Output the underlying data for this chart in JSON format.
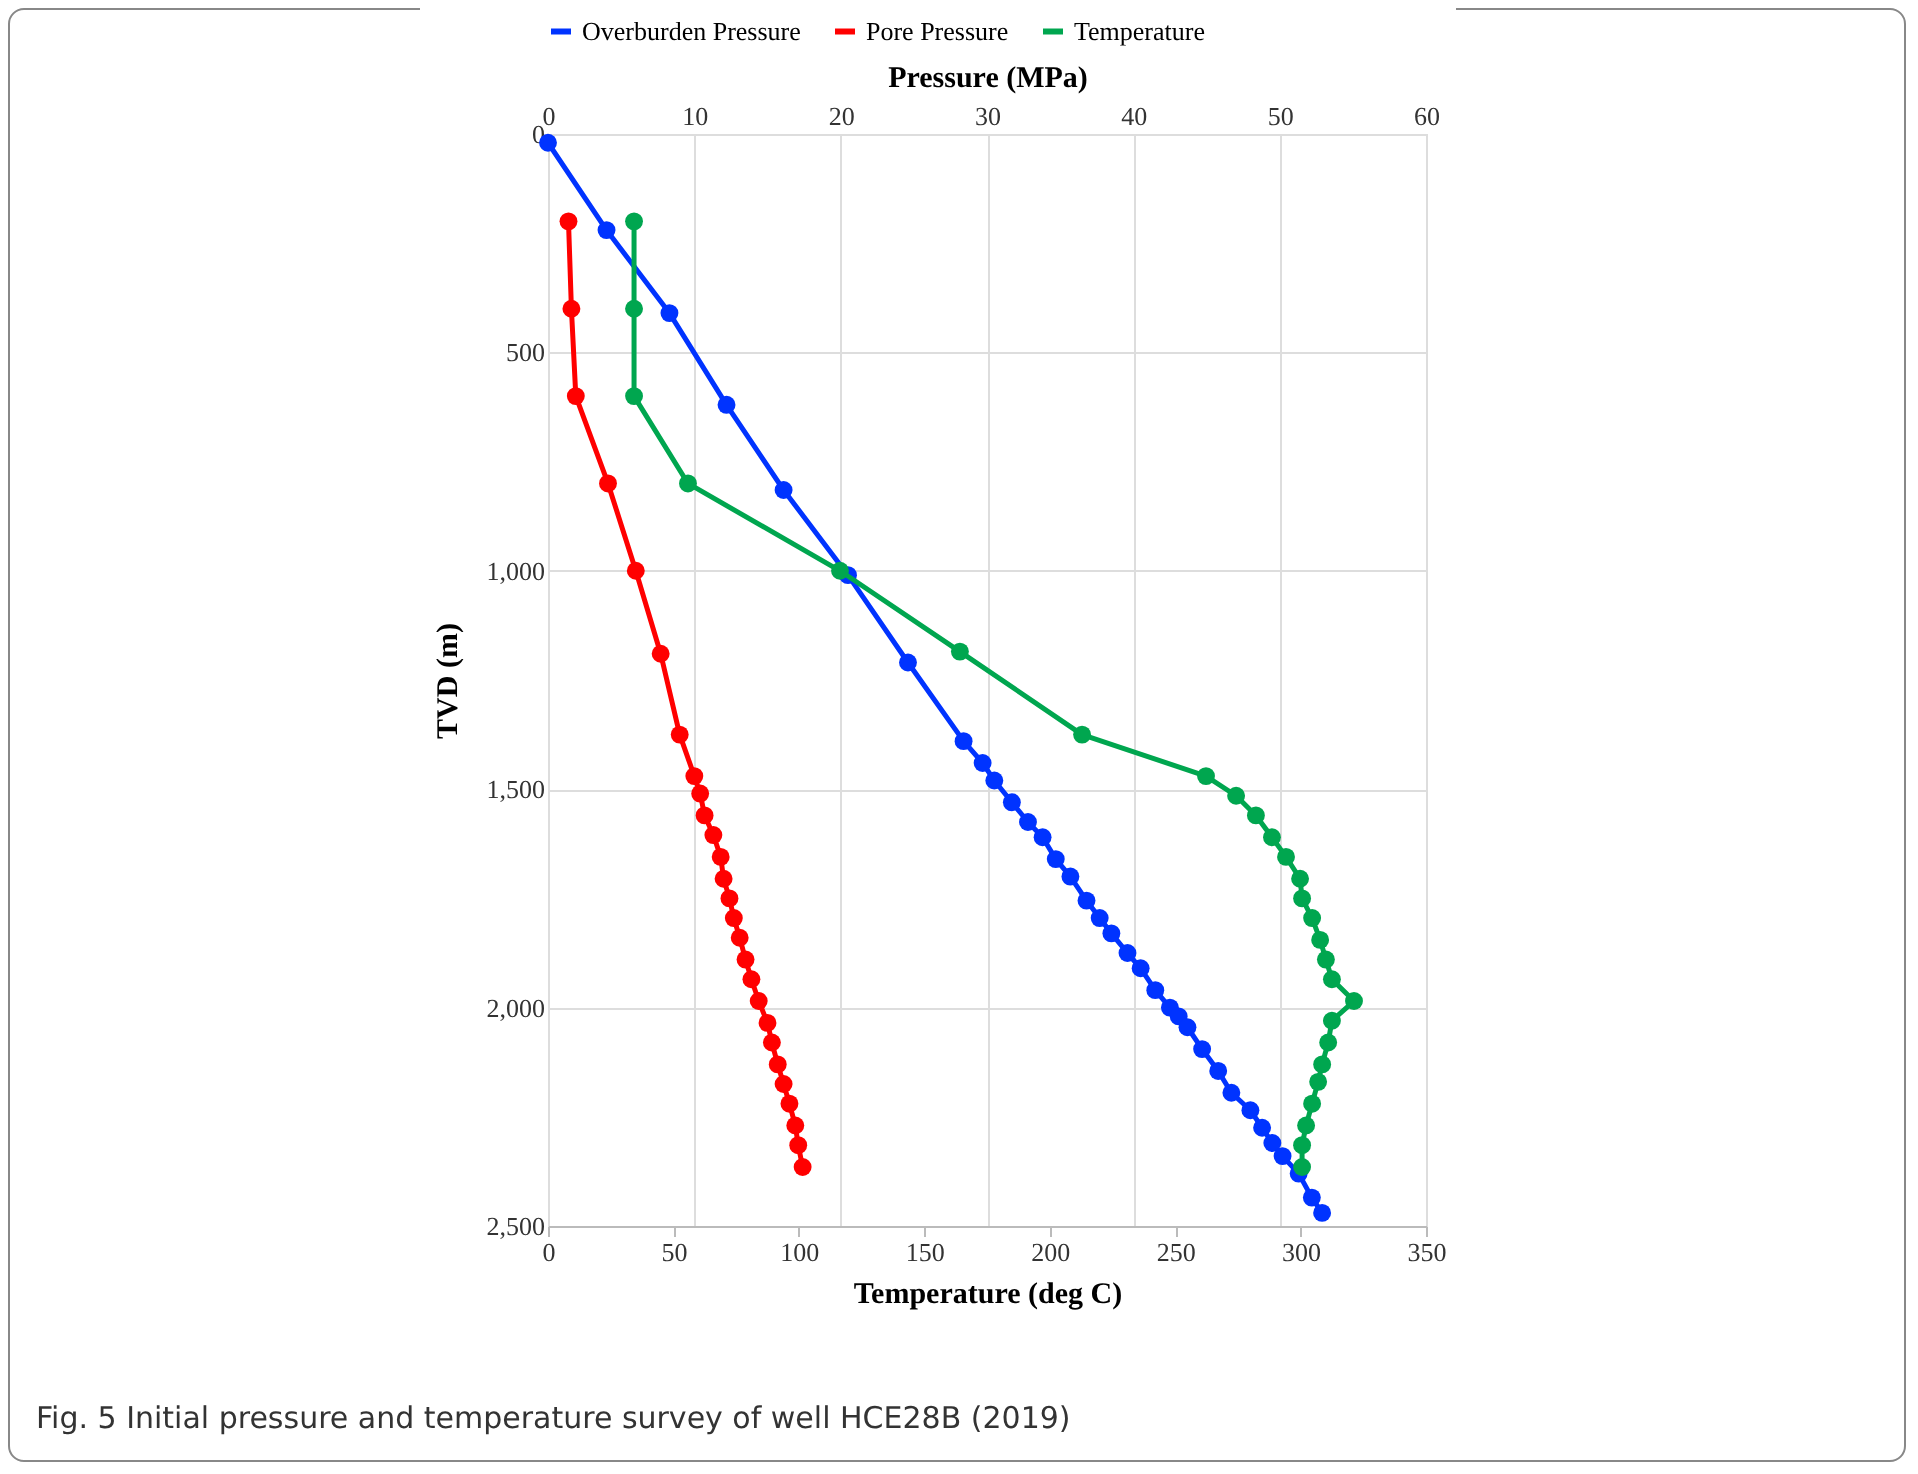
{
  "chart_data": {
    "type": "line",
    "xlabel": "Temperature (deg C)",
    "x2label": "Pressure (MPa)",
    "ylabel": "TVD (m)",
    "annotations": [
      "Fig. 5  Initial pressure and temperature survey of well HCE28B (2019)"
    ],
    "xlim": [
      0,
      350
    ],
    "xticks": [
      0,
      50,
      100,
      150,
      200,
      250,
      300,
      350
    ],
    "x2lim": [
      0,
      60
    ],
    "x2ticks": [
      0,
      10,
      20,
      30,
      40,
      50,
      60
    ],
    "ylim": [
      2500,
      0
    ],
    "yticks": [
      0,
      500,
      {
        "value": 1000,
        "label": "1,000"
      },
      {
        "value": 1500,
        "label": "1,500"
      },
      {
        "value": 2000,
        "label": "2,000"
      },
      {
        "value": 2500,
        "label": "2,500"
      }
    ],
    "grid": true,
    "legend": "top",
    "marker": "circle",
    "line_style": "solid",
    "series": [
      {
        "name": "Overburden Pressure",
        "color": "#0033ff",
        "axis": "x2",
        "x": [
          0,
          4.0,
          8.3,
          12.2,
          16.1,
          20.5,
          24.6,
          28.4,
          29.7,
          30.5,
          31.7,
          32.8,
          33.8,
          34.7,
          35.7,
          36.8,
          37.7,
          38.5,
          39.6,
          40.5,
          41.5,
          42.5,
          43.1,
          43.7,
          44.7,
          45.8,
          46.7,
          48.0,
          48.8,
          49.5,
          50.2,
          51.3,
          52.2,
          52.9
        ],
        "values": [
          20,
          220,
          410,
          620,
          815,
          1010,
          1210,
          1390,
          1440,
          1480,
          1530,
          1575,
          1610,
          1660,
          1700,
          1755,
          1795,
          1830,
          1875,
          1910,
          1960,
          2000,
          2020,
          2045,
          2095,
          2145,
          2195,
          2235,
          2275,
          2310,
          2340,
          2380,
          2435,
          2470
        ]
      },
      {
        "name": "Pore Pressure",
        "color": "#ff0000",
        "axis": "x2",
        "x": [
          1.4,
          1.6,
          1.9,
          4.1,
          6.0,
          7.7,
          9.0,
          10.0,
          10.4,
          10.7,
          11.3,
          11.8,
          12.0,
          12.4,
          12.7,
          13.1,
          13.5,
          13.9,
          14.4,
          15.0,
          15.3,
          15.7,
          16.1,
          16.5,
          16.9,
          17.1,
          17.4
        ],
        "values": [
          200,
          400,
          600,
          800,
          1000,
          1190,
          1375,
          1470,
          1510,
          1560,
          1605,
          1655,
          1705,
          1750,
          1795,
          1840,
          1890,
          1935,
          1985,
          2035,
          2080,
          2130,
          2175,
          2220,
          2270,
          2315,
          2365
        ]
      },
      {
        "name": "Temperature",
        "color": "#00a64f",
        "x": [
          34.3,
          34.3,
          34.3,
          55.8,
          116.4,
          164.2,
          212.9,
          262.3,
          274.3,
          282.2,
          288.6,
          294.2,
          299.8,
          300.6,
          304.6,
          307.8,
          310.1,
          312.5,
          321.3,
          312.5,
          311.0,
          308.6,
          307.0,
          304.6,
          302.2,
          300.6,
          300.6
        ],
        "values": [
          200,
          400,
          600,
          800,
          1000,
          1185,
          1375,
          1470,
          1515,
          1560,
          1610,
          1655,
          1705,
          1750,
          1795,
          1845,
          1890,
          1935,
          1985,
          2030,
          2080,
          2130,
          2170,
          2220,
          2270,
          2315,
          2365
        ]
      }
    ]
  }
}
